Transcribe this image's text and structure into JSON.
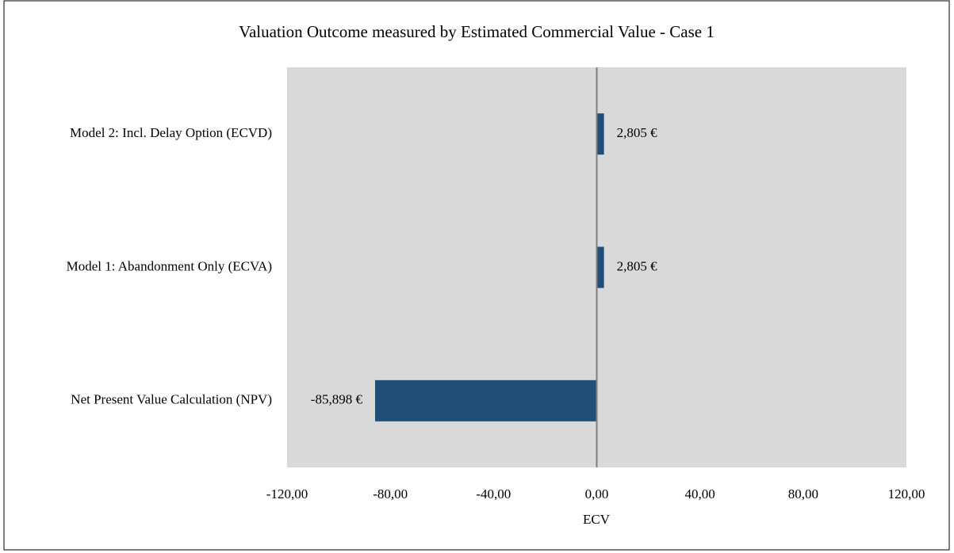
{
  "chart_data": {
    "type": "hbar",
    "title": "Valuation Outcome measured by Estimated Commercial Value - Case 1",
    "x_label": "ECV",
    "categories": [
      "Model 2: Incl. Delay Option (ECVD)",
      "Model 1: Abandonment Only (ECVA)",
      "Net Present Value Calculation (NPV)"
    ],
    "values": [
      2.805,
      2.805,
      -85.898
    ],
    "value_labels": [
      "2,805 €",
      "2,805 €",
      "-85,898 €"
    ],
    "color": "#1f4e79",
    "xlim": [
      -120,
      120
    ],
    "xticks": [
      {
        "value": -120,
        "label": "-120,00"
      },
      {
        "value": -80,
        "label": "-80,00"
      },
      {
        "value": -40,
        "label": "-40,00"
      },
      {
        "value": 0,
        "label": "0,00"
      },
      {
        "value": 40,
        "label": "40,00"
      },
      {
        "value": 80,
        "label": "80,00"
      },
      {
        "value": 120,
        "label": "120,00"
      }
    ]
  }
}
